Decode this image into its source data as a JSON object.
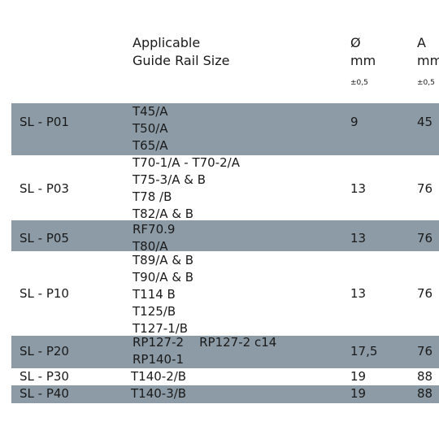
{
  "header": {
    "guide_line1": "Applicable",
    "guide_line2": "Guide Rail Size",
    "dia_symbol": "Ø",
    "dia_unit": "mm",
    "dia_tol": "±0,5",
    "a_symbol": "A",
    "a_unit": "mm",
    "a_tol": "±0,5"
  },
  "rows": [
    {
      "code": "SL - P01",
      "guides": [
        "T45/A",
        "T50/A",
        "T65/A"
      ],
      "dia": "9",
      "a": "45"
    },
    {
      "code": "SL - P03",
      "guides": [
        "T70-1/A - T70-2/A",
        "T75-3/A & B",
        "T78 /B",
        "T82/A & B"
      ],
      "dia": "13",
      "a": "76"
    },
    {
      "code": "SL - P05",
      "guides": [
        "RF70.9",
        "T80/A"
      ],
      "dia": "13",
      "a": "76"
    },
    {
      "code": "SL - P10",
      "guides": [
        "T89/A & B",
        "T90/A & B",
        "T114 B",
        "T125/B",
        "T127-1/B"
      ],
      "dia": "13",
      "a": "76"
    },
    {
      "code": "SL - P20",
      "guides": [
        "RP127-2    RP127-2 c14",
        "RP140-1"
      ],
      "dia": "17,5",
      "a": "76"
    },
    {
      "code": "SL - P30",
      "guides": [
        "T140-2/B"
      ],
      "dia": "19",
      "a": "88"
    },
    {
      "code": "SL - P40",
      "guides": [
        "T140-3/B"
      ],
      "dia": "19",
      "a": "88"
    }
  ],
  "colors": {
    "row_shade": "#8c9ba6",
    "text": "#1a1a1a",
    "background": "#ffffff"
  }
}
